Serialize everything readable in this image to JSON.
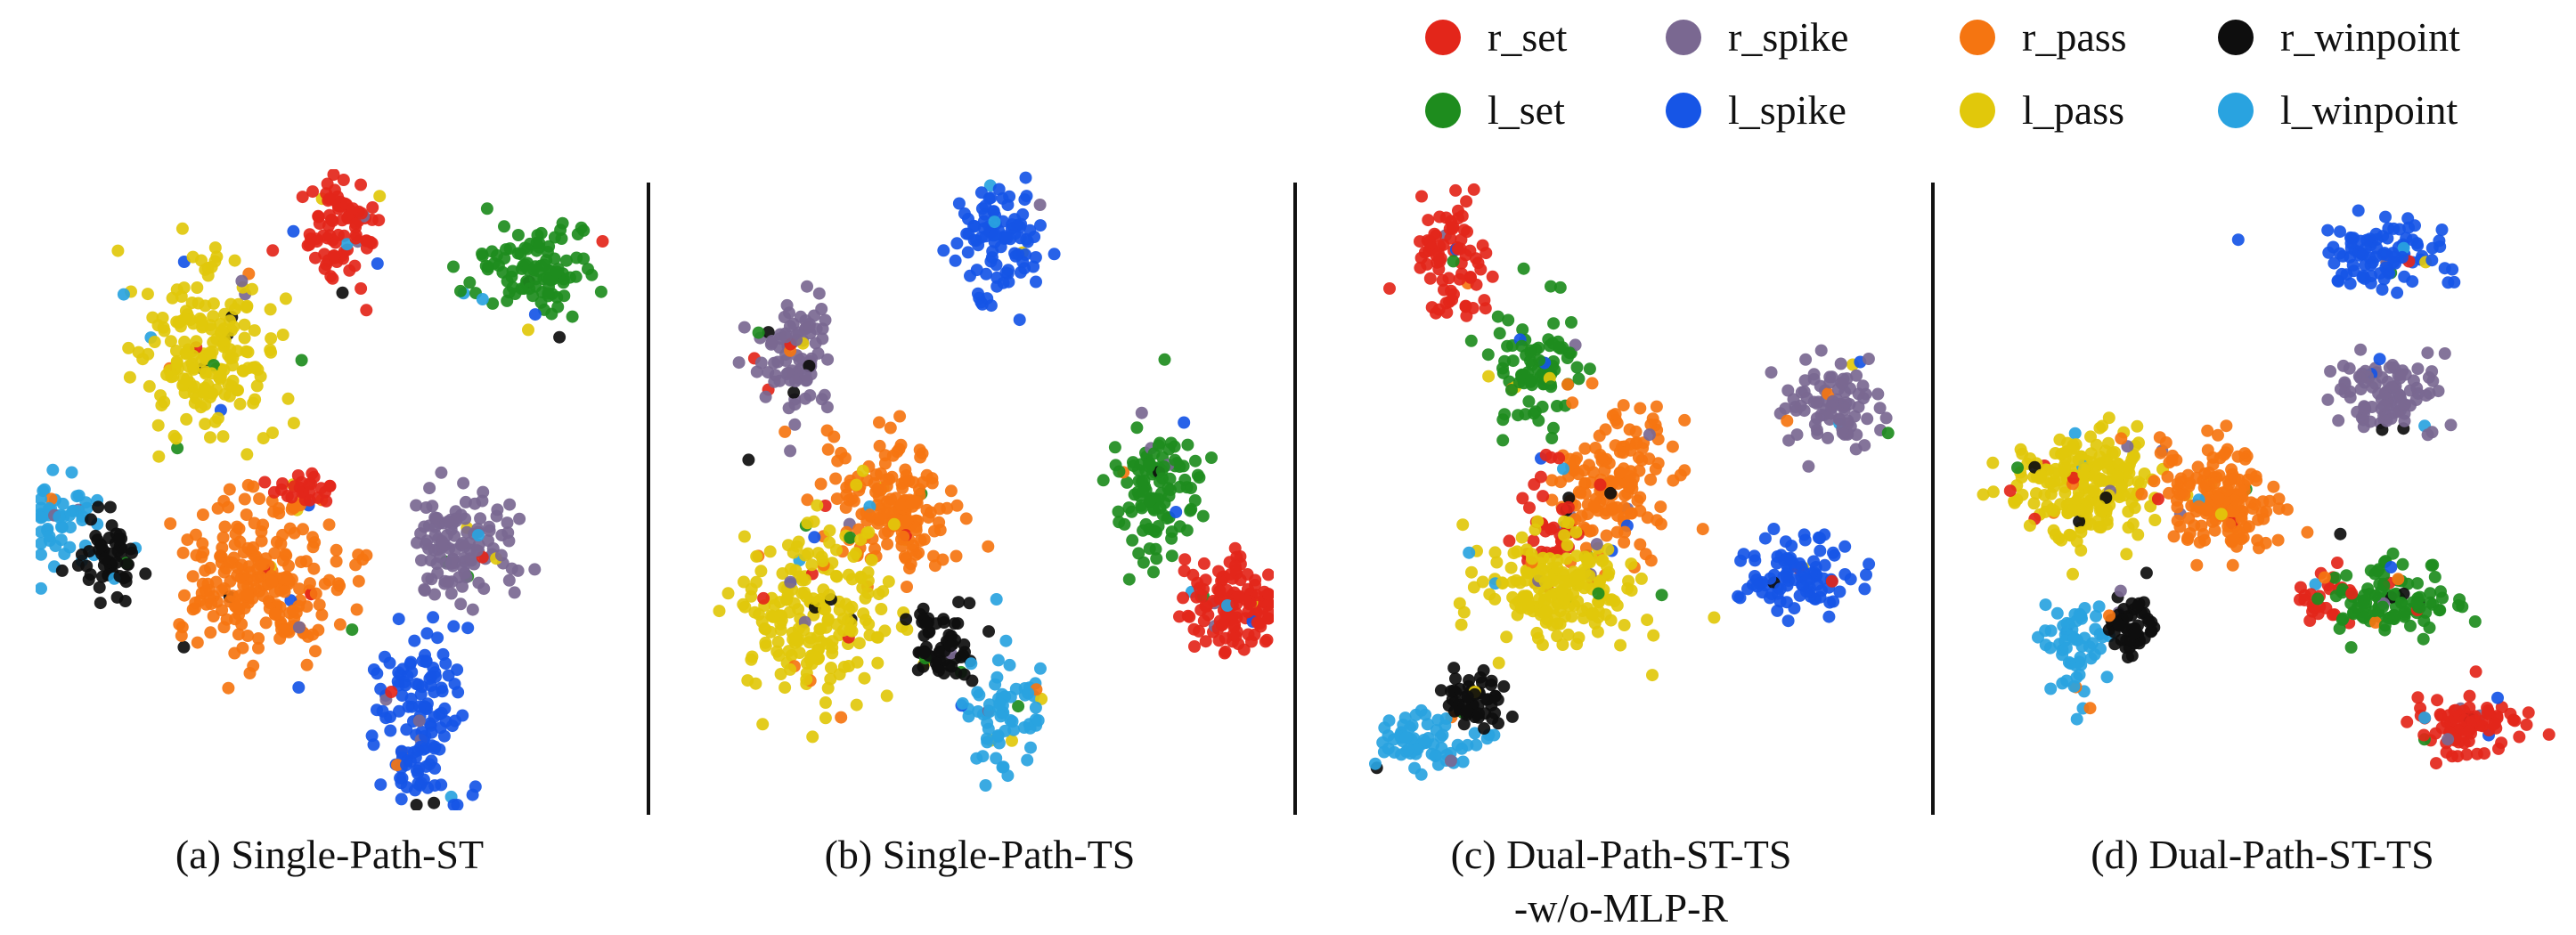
{
  "legend": [
    {
      "name": "r_set",
      "color": "#e3261a"
    },
    {
      "name": "r_spike",
      "color": "#7a6891"
    },
    {
      "name": "r_pass",
      "color": "#f57511"
    },
    {
      "name": "r_winpoint",
      "color": "#0e0e0e"
    },
    {
      "name": "l_set",
      "color": "#1e8c1e"
    },
    {
      "name": "l_spike",
      "color": "#1655e6"
    },
    {
      "name": "l_pass",
      "color": "#e1c80b"
    },
    {
      "name": "l_winpoint",
      "color": "#29a3e0"
    }
  ],
  "chart_data": [
    {
      "type": "scatter",
      "caption": [
        "(a) Single-Path-ST"
      ],
      "xlim": [
        0,
        100
      ],
      "ylim": [
        0,
        100
      ],
      "clusters": [
        {
          "series": "r_set",
          "cx": 52,
          "cy": 93,
          "sx": 3.2,
          "sy": 4.5,
          "n": 90
        },
        {
          "series": "l_set",
          "cx": 88,
          "cy": 86,
          "sx": 6,
          "sy": 3.5,
          "n": 110
        },
        {
          "series": "l_pass",
          "cx": 28,
          "cy": 72,
          "sx": 6,
          "sy": 7,
          "n": 200
        },
        {
          "series": "l_winpoint",
          "cx": 2,
          "cy": 44,
          "sx": 3,
          "sy": 4,
          "n": 55
        },
        {
          "series": "r_winpoint",
          "cx": 10,
          "cy": 38,
          "sx": 3,
          "sy": 3.5,
          "n": 55
        },
        {
          "series": "r_pass",
          "cx": 38,
          "cy": 35,
          "sx": 7,
          "sy": 7,
          "n": 240
        },
        {
          "series": "r_set",
          "cx": 45,
          "cy": 50,
          "sx": 3,
          "sy": 2,
          "n": 25
        },
        {
          "series": "r_spike",
          "cx": 74,
          "cy": 41,
          "sx": 4.5,
          "sy": 5,
          "n": 120
        },
        {
          "series": "l_spike",
          "cx": 66,
          "cy": 12,
          "sx": 4.5,
          "sy": 7,
          "n": 140
        }
      ]
    },
    {
      "type": "scatter",
      "caption": [
        "(b) Single-Path-TS"
      ],
      "xlim": [
        0,
        100
      ],
      "ylim": [
        0,
        100
      ],
      "clusters": [
        {
          "series": "l_spike",
          "cx": 53,
          "cy": 91,
          "sx": 4,
          "sy": 5,
          "n": 100
        },
        {
          "series": "r_spike",
          "cx": 17,
          "cy": 73,
          "sx": 4,
          "sy": 5,
          "n": 90
        },
        {
          "series": "r_pass",
          "cx": 35,
          "cy": 48,
          "sx": 6,
          "sy": 5.5,
          "n": 170
        },
        {
          "series": "l_pass",
          "cx": 21,
          "cy": 30,
          "sx": 6.5,
          "sy": 7,
          "n": 220
        },
        {
          "series": "l_set",
          "cx": 82,
          "cy": 50,
          "sx": 4,
          "sy": 6,
          "n": 110
        },
        {
          "series": "r_set",
          "cx": 96,
          "cy": 31,
          "sx": 4.5,
          "sy": 4,
          "n": 130
        },
        {
          "series": "r_winpoint",
          "cx": 43,
          "cy": 24,
          "sx": 3.5,
          "sy": 3,
          "n": 60
        },
        {
          "series": "l_winpoint",
          "cx": 55,
          "cy": 13,
          "sx": 3.5,
          "sy": 5,
          "n": 70
        }
      ]
    },
    {
      "type": "scatter",
      "caption": [
        "(c) Dual-Path-ST-TS",
        "-w/o-MLP-R"
      ],
      "xlim": [
        0,
        100
      ],
      "ylim": [
        0,
        100
      ],
      "clusters": [
        {
          "series": "r_set",
          "cx": 19,
          "cy": 88,
          "sx": 3.5,
          "sy": 5,
          "n": 80
        },
        {
          "series": "l_set",
          "cx": 34,
          "cy": 70,
          "sx": 4,
          "sy": 5,
          "n": 90
        },
        {
          "series": "r_pass",
          "cx": 49,
          "cy": 51,
          "sx": 5.5,
          "sy": 5.5,
          "n": 160
        },
        {
          "series": "r_set",
          "cx": 38,
          "cy": 44,
          "sx": 3.5,
          "sy": 5,
          "n": 40
        },
        {
          "series": "l_pass",
          "cx": 39,
          "cy": 33,
          "sx": 6.5,
          "sy": 4.5,
          "n": 200
        },
        {
          "series": "r_spike",
          "cx": 88,
          "cy": 64,
          "sx": 4.5,
          "sy": 4,
          "n": 90
        },
        {
          "series": "l_spike",
          "cx": 82,
          "cy": 36,
          "sx": 5,
          "sy": 3.5,
          "n": 100
        },
        {
          "series": "l_winpoint",
          "cx": 15,
          "cy": 8,
          "sx": 4.5,
          "sy": 2.5,
          "n": 70
        },
        {
          "series": "r_winpoint",
          "cx": 23,
          "cy": 15,
          "sx": 2.5,
          "sy": 3,
          "n": 55
        }
      ]
    },
    {
      "type": "scatter",
      "caption": [
        "(d) Dual-Path-ST-TS"
      ],
      "xlim": [
        0,
        100
      ],
      "ylim": [
        0,
        100
      ],
      "clusters": [
        {
          "series": "l_spike",
          "cx": 72,
          "cy": 89,
          "sx": 5.5,
          "sy": 3,
          "n": 100
        },
        {
          "series": "r_spike",
          "cx": 72,
          "cy": 66,
          "sx": 5.5,
          "sy": 3,
          "n": 100
        },
        {
          "series": "l_pass",
          "cx": 18,
          "cy": 51,
          "sx": 7,
          "sy": 4.5,
          "n": 220
        },
        {
          "series": "r_pass",
          "cx": 43,
          "cy": 49,
          "sx": 5.5,
          "sy": 4.5,
          "n": 180
        },
        {
          "series": "r_set",
          "cx": 61,
          "cy": 32,
          "sx": 2.5,
          "sy": 2,
          "n": 30
        },
        {
          "series": "l_set",
          "cx": 74,
          "cy": 32,
          "sx": 5,
          "sy": 3,
          "n": 110
        },
        {
          "series": "l_winpoint",
          "cx": 17,
          "cy": 24,
          "sx": 3,
          "sy": 4,
          "n": 60
        },
        {
          "series": "r_winpoint",
          "cx": 26,
          "cy": 28,
          "sx": 2.5,
          "sy": 2.5,
          "n": 50
        },
        {
          "series": "r_set",
          "cx": 87,
          "cy": 11,
          "sx": 4.5,
          "sy": 2.5,
          "n": 90
        }
      ]
    }
  ]
}
